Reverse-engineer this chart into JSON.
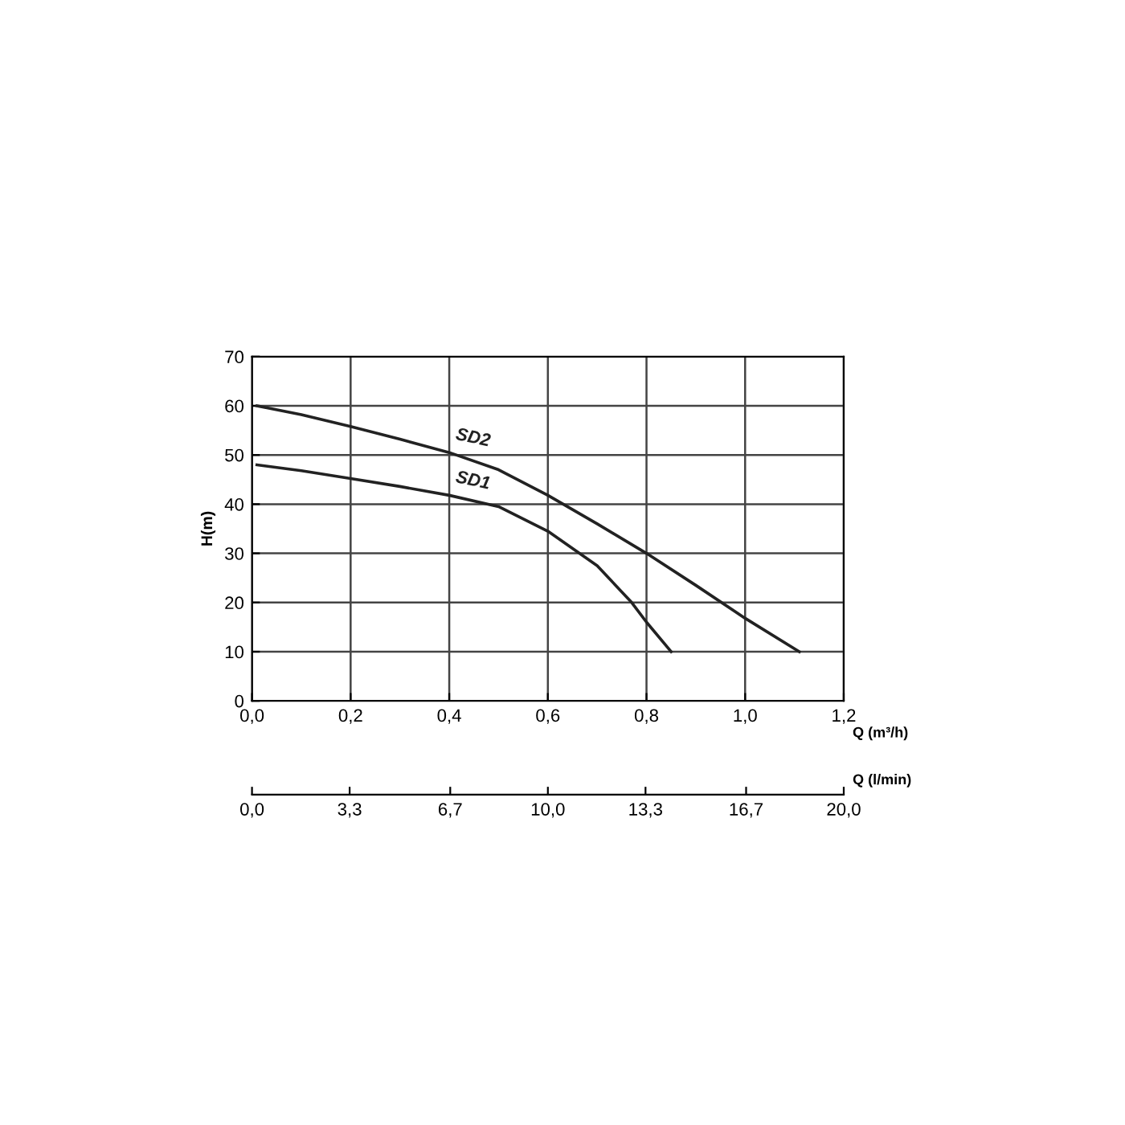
{
  "chart_data": {
    "type": "line",
    "xlabel": "Q (m³/h)",
    "ylabel": "H(m)",
    "x2label": "Q (l/min)",
    "series": [
      {
        "name": "SD2",
        "color": "#222222",
        "x": [
          0.01,
          0.1,
          0.2,
          0.3,
          0.4,
          0.5,
          0.6,
          0.7,
          0.8,
          0.9,
          1.0,
          1.11
        ],
        "values": [
          60,
          58.2,
          55.8,
          53.2,
          50.5,
          47,
          41.8,
          36,
          30,
          23.5,
          16.8,
          10
        ]
      },
      {
        "name": "SD1",
        "color": "#222222",
        "x": [
          0.01,
          0.1,
          0.2,
          0.3,
          0.4,
          0.5,
          0.6,
          0.7,
          0.77,
          0.8,
          0.85
        ],
        "values": [
          48,
          46.8,
          45.2,
          43.6,
          41.8,
          39.5,
          34.5,
          27.5,
          20,
          16,
          10
        ]
      }
    ],
    "xlim": [
      0,
      1.2
    ],
    "xticks": [
      {
        "value": 0,
        "label": "0,0"
      },
      {
        "value": 0.2,
        "label": "0,2"
      },
      {
        "value": 0.4,
        "label": "0,4"
      },
      {
        "value": 0.6,
        "label": "0,6"
      },
      {
        "value": 0.8,
        "label": "0,8"
      },
      {
        "value": 1.0,
        "label": "1,0"
      },
      {
        "value": 1.2,
        "label": "1,2"
      }
    ],
    "x2lim": [
      0,
      20
    ],
    "x2ticks": [
      {
        "value": 0,
        "label": "0,0"
      },
      {
        "value": 3.3,
        "label": "3,3"
      },
      {
        "value": 6.7,
        "label": "6,7"
      },
      {
        "value": 10,
        "label": "10,0"
      },
      {
        "value": 13.3,
        "label": "13,3"
      },
      {
        "value": 16.7,
        "label": "16,7"
      },
      {
        "value": 20,
        "label": "20,0"
      }
    ],
    "ylim": [
      0,
      70
    ],
    "yticks": [
      0,
      10,
      20,
      30,
      40,
      50,
      60,
      70
    ],
    "grid": true,
    "line_style": "solid",
    "marker": "none"
  }
}
